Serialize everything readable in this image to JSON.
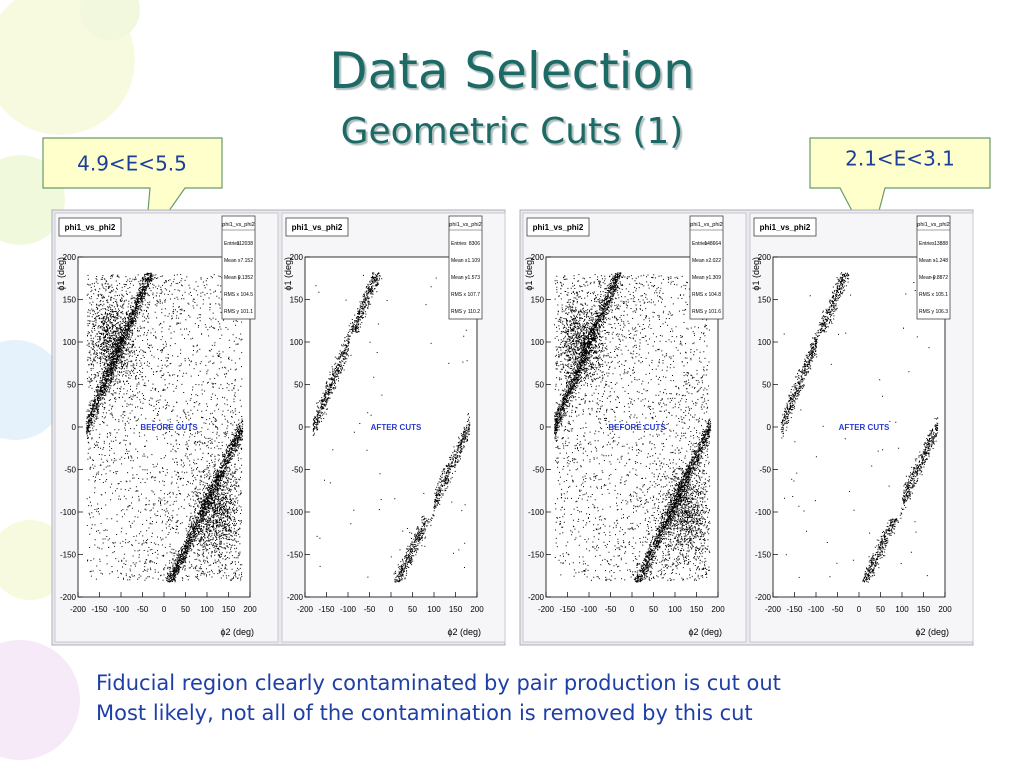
{
  "title": "Data Selection",
  "subtitle": "Geometric Cuts (1)",
  "callouts": [
    "4.9<E<5.5",
    "2.1<E<3.1"
  ],
  "axes": {
    "yticks": [
      200,
      150,
      100,
      50,
      0,
      -50,
      -100,
      -150,
      -200
    ],
    "xticks": [
      -200,
      -150,
      -100,
      -50,
      0,
      50,
      100,
      150,
      200
    ],
    "xlabel": "ϕ2 (deg)",
    "ylabel": "ϕ1 (deg)"
  },
  "panels": [
    {
      "title": "phi1_vs_phi2",
      "stats_title": "phi1_vs_phi2",
      "stats": [
        [
          "Entries",
          "112038"
        ],
        [
          "Mean x",
          "7.152"
        ],
        [
          "Mean y",
          "0.1352"
        ],
        [
          "RMS x",
          "104.5"
        ],
        [
          "RMS y",
          "101.1"
        ]
      ],
      "label": "BEFORE CUTS"
    },
    {
      "title": "phi1_vs_phi2",
      "stats_title": "phi1_vs_phi2",
      "stats": [
        [
          "Entries",
          "8306"
        ],
        [
          "Mean x",
          "1.109"
        ],
        [
          "Mean y",
          "-1.573"
        ],
        [
          "RMS x",
          "107.7"
        ],
        [
          "RMS y",
          "110.2"
        ]
      ],
      "label": "AFTER CUTS"
    },
    {
      "title": "phi1_vs_phi2",
      "stats_title": "phi1_vs_phi2",
      "stats": [
        [
          "Entries",
          "148664"
        ],
        [
          "Mean x",
          "2.022"
        ],
        [
          "Mean y",
          "-1.309"
        ],
        [
          "RMS x",
          "104.8"
        ],
        [
          "RMS y",
          "101.6"
        ]
      ],
      "label": "BEFORE CUTS"
    },
    {
      "title": "phi1_vs_phi2",
      "stats_title": "phi1_vs_phi2",
      "stats": [
        [
          "Entries",
          "13888"
        ],
        [
          "Mean x",
          "-1.248"
        ],
        [
          "Mean y",
          "-0.8872"
        ],
        [
          "RMS x",
          "105.1"
        ],
        [
          "RMS y",
          "106.3"
        ]
      ],
      "label": "AFTER CUTS"
    }
  ],
  "body": [
    "Fiducial region clearly contaminated by pair production is cut out",
    "Most likely, not all of the contamination is removed by this cut"
  ]
}
